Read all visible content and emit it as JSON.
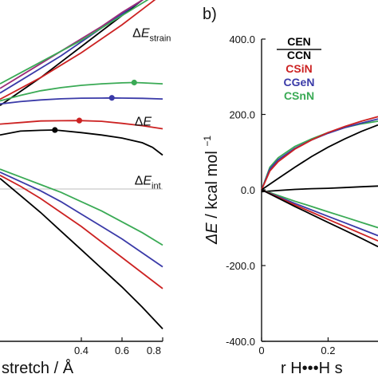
{
  "chart_data": [
    {
      "type": "line",
      "panel": "a",
      "xlabel_visible": "stretch / Å",
      "xlim": [
        0.0,
        0.8
      ],
      "x_ticks": [
        "0.4",
        "0.6",
        "0.8"
      ],
      "x_tick_values": [
        0.4,
        0.6,
        0.8
      ],
      "ylim": [
        -12,
        10
      ],
      "zero_line": true,
      "annotations": [
        {
          "id": "strain",
          "text_main": "ΔE",
          "text_sub": "strain",
          "x": 0.73,
          "y": 7.6
        },
        {
          "id": "total",
          "text_main": "ΔE",
          "text_sub": "",
          "x": 0.74,
          "y": 1.9
        },
        {
          "id": "int",
          "text_main": "ΔE",
          "text_sub": "int",
          "x": 0.74,
          "y": -1.9
        }
      ],
      "series": [
        {
          "color": "#000000",
          "group": "strain",
          "x": [
            0.0,
            0.1,
            0.2,
            0.3,
            0.4,
            0.5,
            0.6,
            0.7,
            0.8
          ],
          "y": [
            3.2,
            4.1,
            5.0,
            6.0,
            7.0,
            8.0,
            9.0,
            10.0,
            11.0
          ]
        },
        {
          "color": "#cc2222",
          "group": "strain",
          "x": [
            0.0,
            0.1,
            0.2,
            0.3,
            0.4,
            0.5,
            0.6,
            0.7,
            0.8
          ],
          "y": [
            3.6,
            4.3,
            5.0,
            5.8,
            6.6,
            7.5,
            8.4,
            9.4,
            10.4
          ]
        },
        {
          "color": "#3a3aa8",
          "group": "strain",
          "x": [
            0.0,
            0.1,
            0.2,
            0.3,
            0.4,
            0.5,
            0.6,
            0.7,
            0.8
          ],
          "y": [
            4.0,
            4.8,
            5.6,
            6.4,
            7.3,
            8.2,
            9.1,
            10.0,
            10.9
          ]
        },
        {
          "color": "#9b2d7a",
          "group": "strain",
          "x": [
            0.0,
            0.1,
            0.2,
            0.3,
            0.4,
            0.5,
            0.6,
            0.7,
            0.8
          ],
          "y": [
            4.3,
            5.1,
            5.9,
            6.7,
            7.5,
            8.3,
            9.2,
            10.0,
            10.8
          ]
        },
        {
          "color": "#3aaa55",
          "group": "strain",
          "x": [
            0.0,
            0.1,
            0.2,
            0.3,
            0.4,
            0.5,
            0.6,
            0.7,
            0.8
          ],
          "y": [
            4.6,
            5.3,
            6.0,
            6.7,
            7.4,
            8.2,
            9.0,
            9.8,
            10.6
          ]
        },
        {
          "color": "#3aaa55",
          "group": "total",
          "x": [
            0.0,
            0.1,
            0.2,
            0.3,
            0.4,
            0.5,
            0.6,
            0.66,
            0.7,
            0.8
          ],
          "y": [
            3.5,
            3.85,
            4.15,
            4.35,
            4.5,
            4.6,
            4.66,
            4.68,
            4.66,
            4.6
          ]
        },
        {
          "color": "#3a3aa8",
          "group": "total",
          "x": [
            0.0,
            0.1,
            0.2,
            0.3,
            0.4,
            0.5,
            0.55,
            0.6,
            0.7,
            0.8
          ],
          "y": [
            3.3,
            3.45,
            3.56,
            3.63,
            3.67,
            3.68,
            3.69,
            3.68,
            3.66,
            3.62
          ]
        },
        {
          "color": "#cc2222",
          "group": "total",
          "x": [
            0.0,
            0.1,
            0.2,
            0.3,
            0.39,
            0.5,
            0.6,
            0.7,
            0.8
          ],
          "y": [
            2.0,
            2.1,
            2.2,
            2.22,
            2.23,
            2.18,
            2.05,
            1.9,
            1.7
          ]
        },
        {
          "color": "#000000",
          "group": "total",
          "x": [
            0.0,
            0.1,
            0.2,
            0.27,
            0.4,
            0.5,
            0.6,
            0.7,
            0.75,
            0.8
          ],
          "y": [
            1.3,
            1.55,
            1.6,
            1.62,
            1.45,
            1.3,
            1.1,
            0.8,
            0.5,
            0.0
          ]
        },
        {
          "color": "#3aaa55",
          "group": "int",
          "x": [
            0.0,
            0.1,
            0.2,
            0.3,
            0.4,
            0.5,
            0.6,
            0.7,
            0.8
          ],
          "y": [
            -0.9,
            -1.4,
            -1.9,
            -2.4,
            -3.0,
            -3.6,
            -4.3,
            -5.0,
            -5.8
          ]
        },
        {
          "color": "#3a3aa8",
          "group": "int",
          "x": [
            0.0,
            0.1,
            0.2,
            0.3,
            0.4,
            0.5,
            0.6,
            0.7,
            0.8
          ],
          "y": [
            -1.1,
            -1.7,
            -2.3,
            -3.0,
            -3.8,
            -4.6,
            -5.4,
            -6.3,
            -7.2
          ]
        },
        {
          "color": "#cc2222",
          "group": "int",
          "x": [
            0.0,
            0.1,
            0.2,
            0.3,
            0.4,
            0.5,
            0.6,
            0.7,
            0.8
          ],
          "y": [
            -1.3,
            -2.0,
            -2.8,
            -3.7,
            -4.6,
            -5.6,
            -6.6,
            -7.6,
            -8.6
          ]
        },
        {
          "color": "#000000",
          "group": "int",
          "x": [
            0.0,
            0.1,
            0.2,
            0.3,
            0.4,
            0.5,
            0.6,
            0.7,
            0.8
          ],
          "y": [
            -1.5,
            -2.6,
            -3.7,
            -4.9,
            -6.1,
            -7.3,
            -8.5,
            -9.8,
            -11.2
          ]
        }
      ],
      "markers": [
        {
          "color": "#3aaa55",
          "x": 0.66,
          "y": 4.68
        },
        {
          "color": "#3a3aa8",
          "x": 0.55,
          "y": 3.69
        },
        {
          "color": "#cc2222",
          "x": 0.39,
          "y": 2.23
        },
        {
          "color": "#000000",
          "x": 0.27,
          "y": 1.62
        }
      ]
    },
    {
      "type": "line",
      "panel": "b",
      "panel_label": "b)",
      "ylabel_main": "ΔE",
      "ylabel_unit": " / kcal mol",
      "ylabel_sup": "−1",
      "xlabel_visible": "r H•••H s",
      "xlim": [
        0.0,
        0.35
      ],
      "x_ticks": [
        "0",
        "0.2"
      ],
      "x_tick_values": [
        0.0,
        0.2
      ],
      "ylim": [
        -400.0,
        400.0
      ],
      "y_ticks": [
        "400.0",
        "200.0",
        "0.0",
        "-200.0",
        "-400.0"
      ],
      "y_tick_values": [
        400,
        200,
        0,
        -200,
        -400
      ],
      "legend": {
        "placement": "top-right",
        "entries": [
          {
            "label": "CEN",
            "color": "#000000"
          },
          {
            "label": "CCN",
            "color": "#000000"
          },
          {
            "label": "CSiN",
            "color": "#cc2222"
          },
          {
            "label": "CGeN",
            "color": "#3a3aa8"
          },
          {
            "label": "CSnN",
            "color": "#3aaa55"
          }
        ]
      },
      "series": [
        {
          "color": "#3aaa55",
          "x": [
            0.0,
            0.025,
            0.05,
            0.1,
            0.15,
            0.2,
            0.25,
            0.3,
            0.35
          ],
          "y": [
            0,
            60,
            85,
            115,
            135,
            152,
            165,
            175,
            182
          ]
        },
        {
          "color": "#3a3aa8",
          "x": [
            0.0,
            0.025,
            0.05,
            0.1,
            0.15,
            0.2,
            0.25,
            0.3,
            0.35
          ],
          "y": [
            0,
            55,
            80,
            110,
            132,
            150,
            165,
            177,
            188
          ]
        },
        {
          "color": "#cc2222",
          "x": [
            0.0,
            0.025,
            0.05,
            0.1,
            0.15,
            0.2,
            0.25,
            0.3,
            0.35
          ],
          "y": [
            0,
            50,
            75,
            108,
            132,
            152,
            168,
            182,
            194
          ]
        },
        {
          "color": "#000000",
          "x": [
            0.0,
            0.05,
            0.1,
            0.15,
            0.2,
            0.25,
            0.3,
            0.35
          ],
          "y": [
            0,
            30,
            60,
            88,
            113,
            135,
            155,
            172
          ]
        },
        {
          "color": "#000000",
          "x": [
            0.0,
            0.05,
            0.1,
            0.15,
            0.2,
            0.25,
            0.3,
            0.35
          ],
          "y": [
            -5,
            -2,
            1,
            3,
            4,
            6,
            8,
            10
          ]
        },
        {
          "color": "#3aaa55",
          "x": [
            0.0,
            0.05,
            0.1,
            0.15,
            0.2,
            0.25,
            0.3,
            0.35
          ],
          "y": [
            0,
            -15,
            -30,
            -44,
            -58,
            -72,
            -86,
            -100
          ]
        },
        {
          "color": "#3a3aa8",
          "x": [
            0.0,
            0.05,
            0.1,
            0.15,
            0.2,
            0.25,
            0.3,
            0.35
          ],
          "y": [
            0,
            -18,
            -36,
            -53,
            -70,
            -87,
            -104,
            -121
          ]
        },
        {
          "color": "#cc2222",
          "x": [
            0.0,
            0.05,
            0.1,
            0.15,
            0.2,
            0.25,
            0.3,
            0.35
          ],
          "y": [
            0,
            -20,
            -40,
            -59,
            -78,
            -97,
            -116,
            -135
          ]
        },
        {
          "color": "#000000",
          "x": [
            0.0,
            0.05,
            0.1,
            0.15,
            0.2,
            0.25,
            0.3,
            0.35
          ],
          "y": [
            0,
            -22,
            -44,
            -65,
            -86,
            -107,
            -128,
            -150
          ]
        }
      ]
    }
  ]
}
